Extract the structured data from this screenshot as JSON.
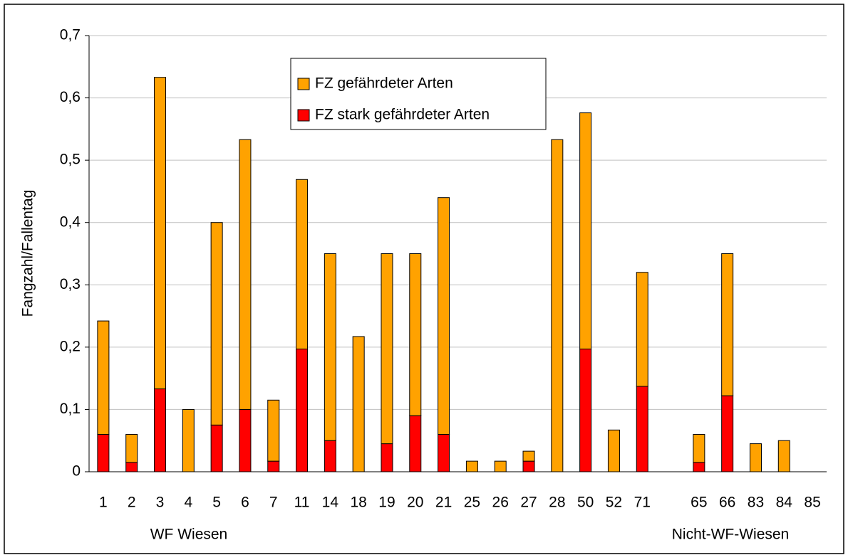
{
  "chart_data": {
    "type": "stacked_bar",
    "y_label": "Fangzahl/Fallentag",
    "categories": [
      "1",
      "2",
      "3",
      "4",
      "5",
      "6",
      "7",
      "11",
      "14",
      "18",
      "19",
      "20",
      "21",
      "25",
      "26",
      "27",
      "28",
      "50",
      "52",
      "71",
      null,
      "65",
      "66",
      "83",
      "84",
      "85"
    ],
    "series": [
      {
        "name": "FZ stark gefährdeter Arten",
        "color": "#ff0000",
        "values": [
          0.06,
          0.015,
          0.133,
          0,
          0.075,
          0.1,
          0.017,
          0.197,
          0.05,
          0,
          0.045,
          0.09,
          0.06,
          0,
          0,
          0.017,
          0,
          0.197,
          0,
          0.137,
          null,
          0.015,
          0.122,
          0,
          0,
          0
        ]
      },
      {
        "name": "FZ gefährdeter Arten",
        "color": "#ffa200",
        "values": [
          0.182,
          0.045,
          0.5,
          0.1,
          0.325,
          0.433,
          0.098,
          0.272,
          0.3,
          0.217,
          0.305,
          0.26,
          0.38,
          0.017,
          0.017,
          0.016,
          0.533,
          0.379,
          0.067,
          0.183,
          null,
          0.045,
          0.228,
          0.045,
          0.05,
          0
        ]
      }
    ],
    "annotations": [
      "WF Wiesen",
      "Nicht-WF-Wiesen"
    ],
    "ylim": [
      0,
      0.7
    ],
    "yticks": [
      0,
      {
        "value": 0.1,
        "label": "0,1"
      },
      {
        "value": 0.2,
        "label": "0,2"
      },
      {
        "value": 0.3,
        "label": "0,3"
      },
      {
        "value": 0.4,
        "label": "0,4"
      },
      {
        "value": 0.5,
        "label": "0,5"
      },
      {
        "value": 0.6,
        "label": "0,6"
      },
      {
        "value": 0.7,
        "label": "0,7"
      }
    ],
    "grid": true
  }
}
